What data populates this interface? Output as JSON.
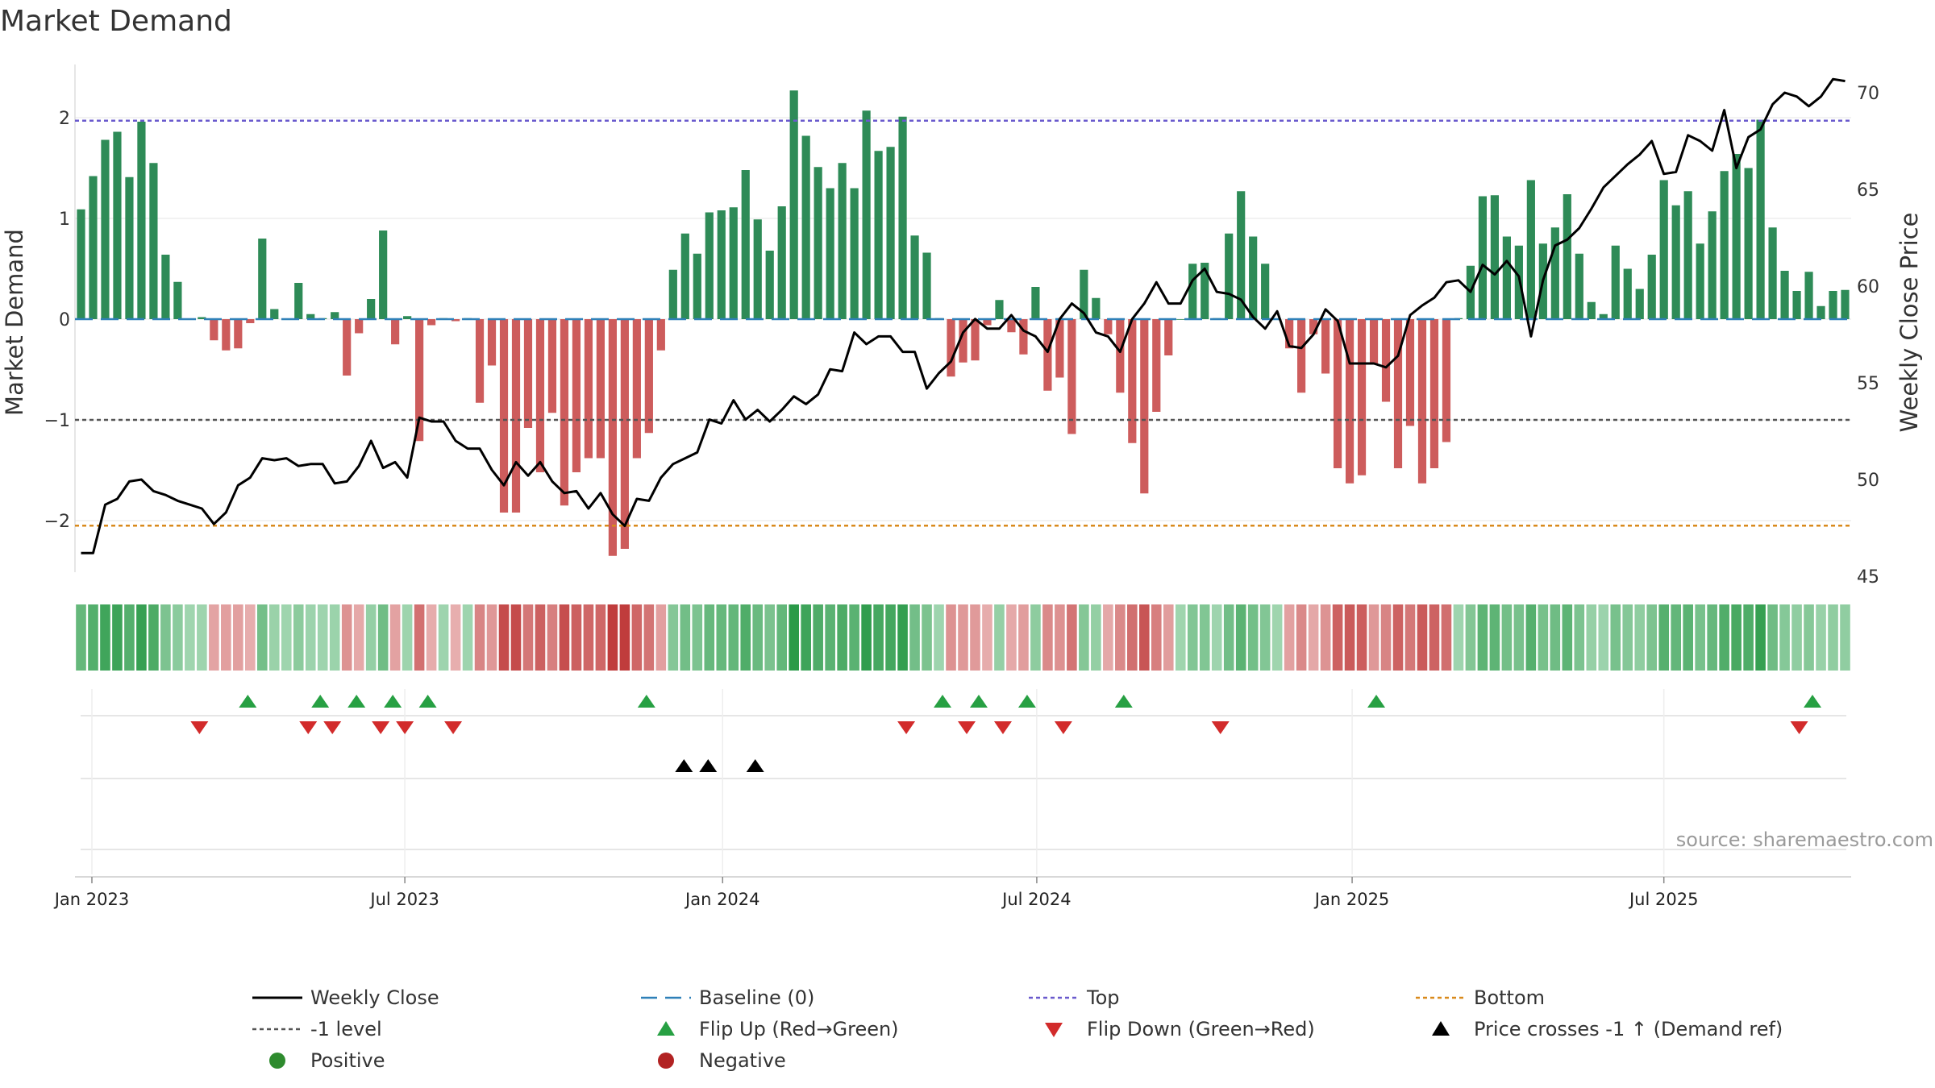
{
  "chart_data": {
    "type": "bar",
    "title": "Market Demand",
    "ylabel": "Market Demand",
    "y2label": "Weekly Close Price",
    "ylim": [
      -2.55,
      2.55
    ],
    "y2lim": [
      45,
      71.5
    ],
    "yticks": [
      -2,
      -1,
      0,
      1,
      2
    ],
    "yticklabels": [
      "−2",
      "−1",
      "0",
      "1",
      "2"
    ],
    "y2ticks": [
      45,
      50,
      55,
      60,
      65,
      70
    ],
    "y2ticklabels": [
      "45",
      "50",
      "55",
      "60",
      "65",
      "70"
    ],
    "xticklabels": [
      "Jan 2023",
      "Jul 2023",
      "Jan 2024",
      "Jul 2024",
      "Jan 2025",
      "Jul 2025"
    ],
    "xtick_weeks": [
      1.4,
      27.3,
      53.6,
      79.6,
      105.7,
      131.5
    ],
    "levels": {
      "top": 1.97,
      "minus_one": -1.0,
      "bottom": -2.05,
      "baseline": 0
    },
    "demand": [
      1.09,
      1.42,
      1.78,
      1.86,
      1.41,
      1.96,
      1.55,
      0.64,
      0.37,
      0.0,
      0.02,
      -0.21,
      -0.31,
      -0.29,
      -0.04,
      0.8,
      0.1,
      0.0,
      0.36,
      0.05,
      0.01,
      0.07,
      -0.56,
      -0.14,
      0.2,
      0.88,
      -0.25,
      0.03,
      -1.21,
      -0.06,
      0.01,
      -0.02,
      0.01,
      -0.83,
      -0.46,
      -1.92,
      -1.92,
      -1.08,
      -1.52,
      -0.93,
      -1.85,
      -1.52,
      -1.38,
      -1.38,
      -2.35,
      -2.28,
      -1.38,
      -1.13,
      -0.31,
      0.49,
      0.85,
      0.65,
      1.06,
      1.08,
      1.11,
      1.48,
      0.99,
      0.68,
      1.12,
      2.27,
      1.82,
      1.51,
      1.3,
      1.55,
      1.3,
      2.07,
      1.67,
      1.71,
      2.01,
      0.83,
      0.66,
      0.01,
      -0.57,
      -0.43,
      -0.41,
      -0.06,
      0.19,
      -0.13,
      -0.35,
      0.32,
      -0.71,
      -0.58,
      -1.14,
      0.49,
      0.21,
      -0.15,
      -0.73,
      -1.23,
      -1.73,
      -0.92,
      -0.36,
      0.0,
      0.55,
      0.56,
      0.01,
      0.85,
      1.27,
      0.82,
      0.55,
      0.0,
      -0.29,
      -0.73,
      -0.15,
      -0.54,
      -1.48,
      -1.63,
      -1.55,
      -0.45,
      -0.82,
      -1.48,
      -1.06,
      -1.63,
      -1.48,
      -1.22,
      0.01,
      0.53,
      1.22,
      1.23,
      0.82,
      0.73,
      1.38,
      0.75,
      0.91,
      1.24,
      0.65,
      0.17,
      0.05,
      0.73,
      0.5,
      0.3,
      0.64,
      1.38,
      1.13,
      1.27,
      0.75,
      1.07,
      1.47,
      1.64,
      1.5,
      1.98,
      0.91,
      0.48,
      0.28,
      0.47,
      0.13,
      0.28,
      0.29
    ],
    "price": [
      46.2,
      46.2,
      48.7,
      49.0,
      49.9,
      50.0,
      49.4,
      49.2,
      48.9,
      48.7,
      48.5,
      47.7,
      48.3,
      49.7,
      50.1,
      51.1,
      51.0,
      51.1,
      50.7,
      50.8,
      50.8,
      49.8,
      49.9,
      50.7,
      52.0,
      50.6,
      50.9,
      50.1,
      53.2,
      53.0,
      53.0,
      52.0,
      51.6,
      51.6,
      50.5,
      49.7,
      50.9,
      50.2,
      50.9,
      49.9,
      49.3,
      49.4,
      48.5,
      49.3,
      48.2,
      47.6,
      49.0,
      48.9,
      50.1,
      50.8,
      51.1,
      51.4,
      53.1,
      52.9,
      54.1,
      53.1,
      53.6,
      53.0,
      53.6,
      54.3,
      53.9,
      54.4,
      55.7,
      55.6,
      57.6,
      57.0,
      57.4,
      57.4,
      56.6,
      56.6,
      54.7,
      55.5,
      56.1,
      57.6,
      58.3,
      57.8,
      57.8,
      58.5,
      57.7,
      57.4,
      56.6,
      58.3,
      59.1,
      58.6,
      57.6,
      57.4,
      56.6,
      58.3,
      59.1,
      60.2,
      59.1,
      59.1,
      60.3,
      60.9,
      59.7,
      59.6,
      59.3,
      58.4,
      57.8,
      58.7,
      56.9,
      56.8,
      57.5,
      58.8,
      58.2,
      56.0,
      56.0,
      56.0,
      55.8,
      56.4,
      58.5,
      59.0,
      59.4,
      60.2,
      60.3,
      59.7,
      61.1,
      60.6,
      61.3,
      60.5,
      57.4,
      60.3,
      62.1,
      62.4,
      63.0,
      64.0,
      65.1,
      65.7,
      66.3,
      66.8,
      67.5,
      65.8,
      65.9,
      67.8,
      67.5,
      67.0,
      69.1,
      66.1,
      67.7,
      68.1,
      69.4,
      70.0,
      69.8,
      69.3,
      69.8,
      70.7,
      70.6
    ],
    "flip_up_weeks": [
      14.3,
      20.3,
      23.3,
      26.3,
      29.2,
      47.3,
      71.8,
      74.8,
      78.8,
      86.8,
      107.7,
      143.8
    ],
    "flip_down_weeks": [
      10.3,
      19.3,
      21.3,
      25.3,
      27.3,
      31.3,
      68.8,
      73.8,
      76.8,
      81.8,
      94.8,
      142.7
    ],
    "cross_up_weeks": [
      50.4,
      52.4,
      56.3
    ],
    "colors": {
      "positive_bar": "#2e8b57",
      "negative_bar": "#cd5c5c",
      "price_line": "#000000",
      "baseline": "#2f80b8",
      "top": "#6a5acd",
      "minus_one": "#555555",
      "bottom": "#d98a1c",
      "flip_up": "#27a043",
      "flip_down": "#d22b2b",
      "cross_up": "#000000",
      "positive_dot": "#2e8b2e",
      "negative_dot": "#b22222"
    },
    "legend": {
      "position": "bottom",
      "entries": [
        {
          "label": "Weekly Close",
          "kind": "line-solid"
        },
        {
          "label": "Baseline (0)",
          "kind": "line-dash"
        },
        {
          "label": "Top",
          "kind": "line-dot-top"
        },
        {
          "label": "Bottom",
          "kind": "line-dot-bottom"
        },
        {
          "label": "-1 level",
          "kind": "line-dot-minus"
        },
        {
          "label": "Flip Up (Red→Green)",
          "kind": "tri-up"
        },
        {
          "label": "Flip Down (Green→Red)",
          "kind": "tri-down"
        },
        {
          "label": "Price crosses -1 ↑ (Demand ref)",
          "kind": "tri-cross"
        },
        {
          "label": "Positive",
          "kind": "dot-pos"
        },
        {
          "label": "Negative",
          "kind": "dot-neg"
        }
      ]
    }
  },
  "source": "source: sharemaestro.com"
}
